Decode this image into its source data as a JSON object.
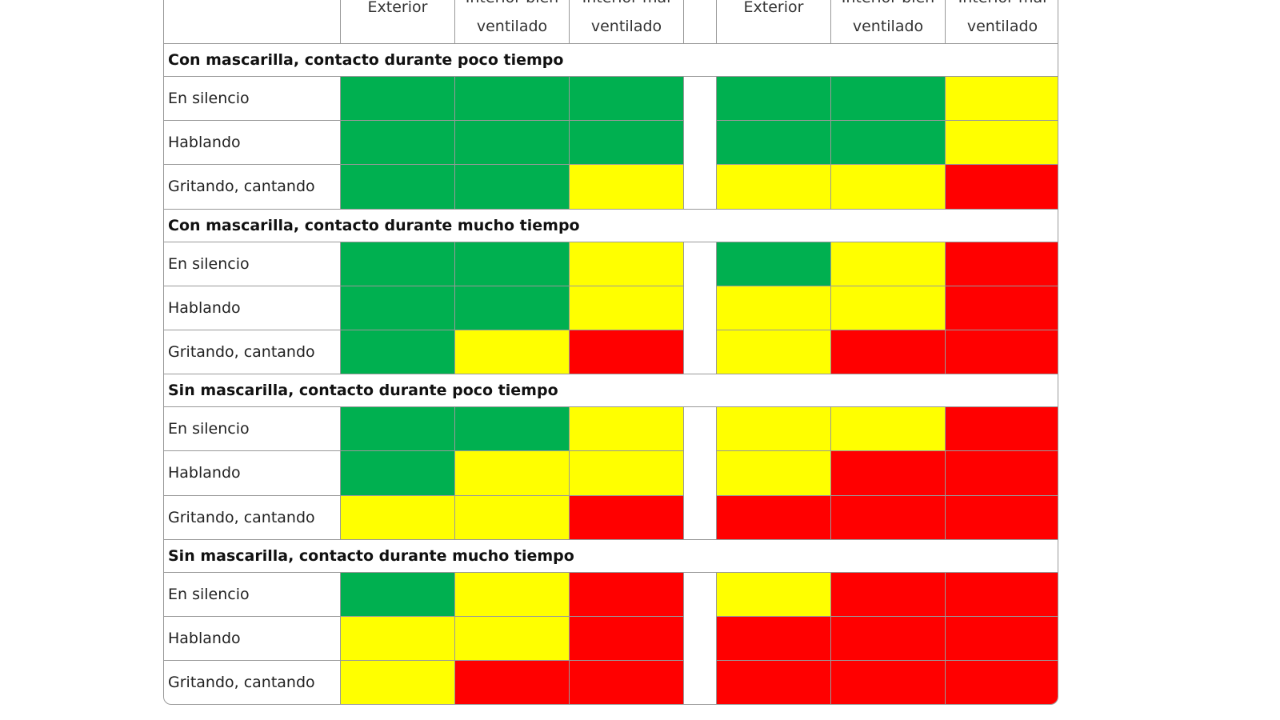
{
  "header": {
    "columns": [
      [
        "Exterior"
      ],
      [
        "Interior bien",
        "ventilado"
      ],
      [
        "Interior mal",
        "ventilado"
      ],
      [
        "Exterior"
      ],
      [
        "Interior bien",
        "ventilado"
      ],
      [
        "Interior mal",
        "ventilado"
      ]
    ]
  },
  "sections": [
    {
      "title": "Con mascarilla, contacto durante poco tiempo",
      "rows": [
        {
          "label": "En silencio",
          "cells": [
            "#00b050",
            "#00b050",
            "#00b050",
            "#00b050",
            "#00b050",
            "#ffff00"
          ]
        },
        {
          "label": "Hablando",
          "cells": [
            "#00b050",
            "#00b050",
            "#00b050",
            "#00b050",
            "#00b050",
            "#ffff00"
          ]
        },
        {
          "label": "Gritando, cantando",
          "cells": [
            "#00b050",
            "#00b050",
            "#ffff00",
            "#ffff00",
            "#ffff00",
            "#ff0000"
          ]
        }
      ]
    },
    {
      "title": "Con mascarilla, contacto durante mucho tiempo",
      "rows": [
        {
          "label": "En silencio",
          "cells": [
            "#00b050",
            "#00b050",
            "#ffff00",
            "#00b050",
            "#ffff00",
            "#ff0000"
          ]
        },
        {
          "label": "Hablando",
          "cells": [
            "#00b050",
            "#00b050",
            "#ffff00",
            "#ffff00",
            "#ffff00",
            "#ff0000"
          ]
        },
        {
          "label": "Gritando, cantando",
          "cells": [
            "#00b050",
            "#ffff00",
            "#ff0000",
            "#ffff00",
            "#ff0000",
            "#ff0000"
          ]
        }
      ]
    },
    {
      "title": "Sin mascarilla, contacto durante poco tiempo",
      "rows": [
        {
          "label": "En silencio",
          "cells": [
            "#00b050",
            "#00b050",
            "#ffff00",
            "#ffff00",
            "#ffff00",
            "#ff0000"
          ]
        },
        {
          "label": "Hablando",
          "cells": [
            "#00b050",
            "#ffff00",
            "#ffff00",
            "#ffff00",
            "#ff0000",
            "#ff0000"
          ]
        },
        {
          "label": "Gritando, cantando",
          "cells": [
            "#ffff00",
            "#ffff00",
            "#ff0000",
            "#ff0000",
            "#ff0000",
            "#ff0000"
          ]
        }
      ]
    },
    {
      "title": "Sin mascarilla, contacto durante mucho tiempo",
      "rows": [
        {
          "label": "En silencio",
          "cells": [
            "#00b050",
            "#ffff00",
            "#ff0000",
            "#ffff00",
            "#ff0000",
            "#ff0000"
          ]
        },
        {
          "label": "Hablando",
          "cells": [
            "#ffff00",
            "#ffff00",
            "#ff0000",
            "#ff0000",
            "#ff0000",
            "#ff0000"
          ]
        },
        {
          "label": "Gritando, cantando",
          "cells": [
            "#ffff00",
            "#ff0000",
            "#ff0000",
            "#ff0000",
            "#ff0000",
            "#ff0000"
          ]
        }
      ]
    }
  ]
}
